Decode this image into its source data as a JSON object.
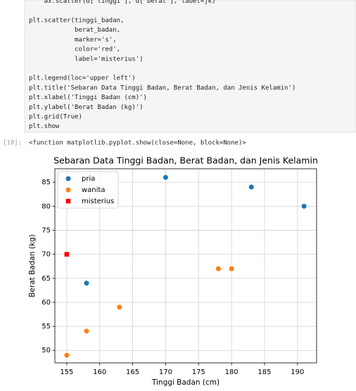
{
  "notebook": {
    "code": [
      "    ax.scatter(d['tinggi'], d['berat'], label=jk)",
      "",
      "plt.scatter(tinggi_badan,",
      "            berat_badan,",
      "            marker='s',",
      "            color='red',",
      "            label='misterius')",
      "",
      "plt.legend(loc='upper left')",
      "plt.title('Sebaran Data Tinggi Badan, Berat Badan, dan Jenis Kelamin')",
      "plt.xlabel('Tinggi Badan (cm)')",
      "plt.ylabel('Berat Badan (kg)')",
      "plt.grid(True)",
      "plt.show"
    ],
    "prompt": "[10]:",
    "output": "<function matplotlib.pyplot.show(close=None, block=None)>"
  },
  "chart_data": {
    "type": "scatter",
    "title": "Sebaran Data Tinggi Badan, Berat Badan, dan Jenis Kelamin",
    "xlabel": "Tinggi Badan (cm)",
    "ylabel": "Berat Badan (kg)",
    "series": [
      {
        "name": "pria",
        "color": "#1f77b4",
        "marker": "circle",
        "x": [
          158,
          170,
          183,
          191
        ],
        "values": [
          64,
          86,
          84,
          80
        ]
      },
      {
        "name": "wanita",
        "color": "#ff7f0e",
        "marker": "circle",
        "x": [
          155,
          158,
          163,
          178,
          180
        ],
        "values": [
          49,
          54,
          59,
          67,
          67
        ]
      },
      {
        "name": "misterius",
        "color": "red",
        "marker": "square",
        "x": [
          155
        ],
        "values": [
          70
        ]
      }
    ],
    "xlim": [
      153.2,
      192.9
    ],
    "ylim": [
      47.4,
      87.8
    ],
    "xticks": [
      155,
      160,
      165,
      170,
      175,
      180,
      185,
      190
    ],
    "yticks": [
      50,
      55,
      60,
      65,
      70,
      75,
      80,
      85
    ],
    "grid": true,
    "legend": "upper left"
  }
}
